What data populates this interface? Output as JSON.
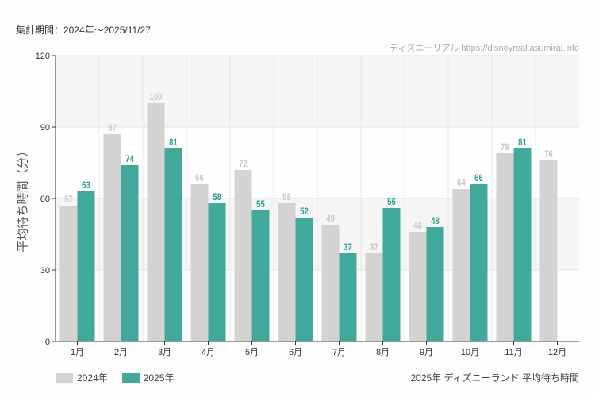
{
  "header": {
    "period": "集計期間：2024年～2025/11/27",
    "credit": "ディズニーリアル https://disneyreal.asumirai.info"
  },
  "caption": "2025年 ディズニーランド 平均待ち時間",
  "chart_data": {
    "type": "bar",
    "ylabel": "平均待ち時間（分）",
    "ylim": [
      0,
      120
    ],
    "yticks": [
      "0",
      "30",
      "60",
      "90",
      "120"
    ],
    "categories": [
      "1月",
      "2月",
      "3月",
      "4月",
      "5月",
      "6月",
      "7月",
      "8月",
      "9月",
      "10月",
      "11月",
      "12月"
    ],
    "series": [
      {
        "name": "2024年",
        "color": "#d3d3d1",
        "values": [
          57,
          87,
          100,
          66,
          72,
          58,
          49,
          37,
          46,
          64,
          79,
          76
        ]
      },
      {
        "name": "2025年",
        "color": "#40a99c",
        "values": [
          63,
          74,
          81,
          58,
          55,
          52,
          37,
          56,
          48,
          66,
          81,
          null
        ]
      }
    ],
    "grid": true,
    "legend": "bottom-left"
  }
}
